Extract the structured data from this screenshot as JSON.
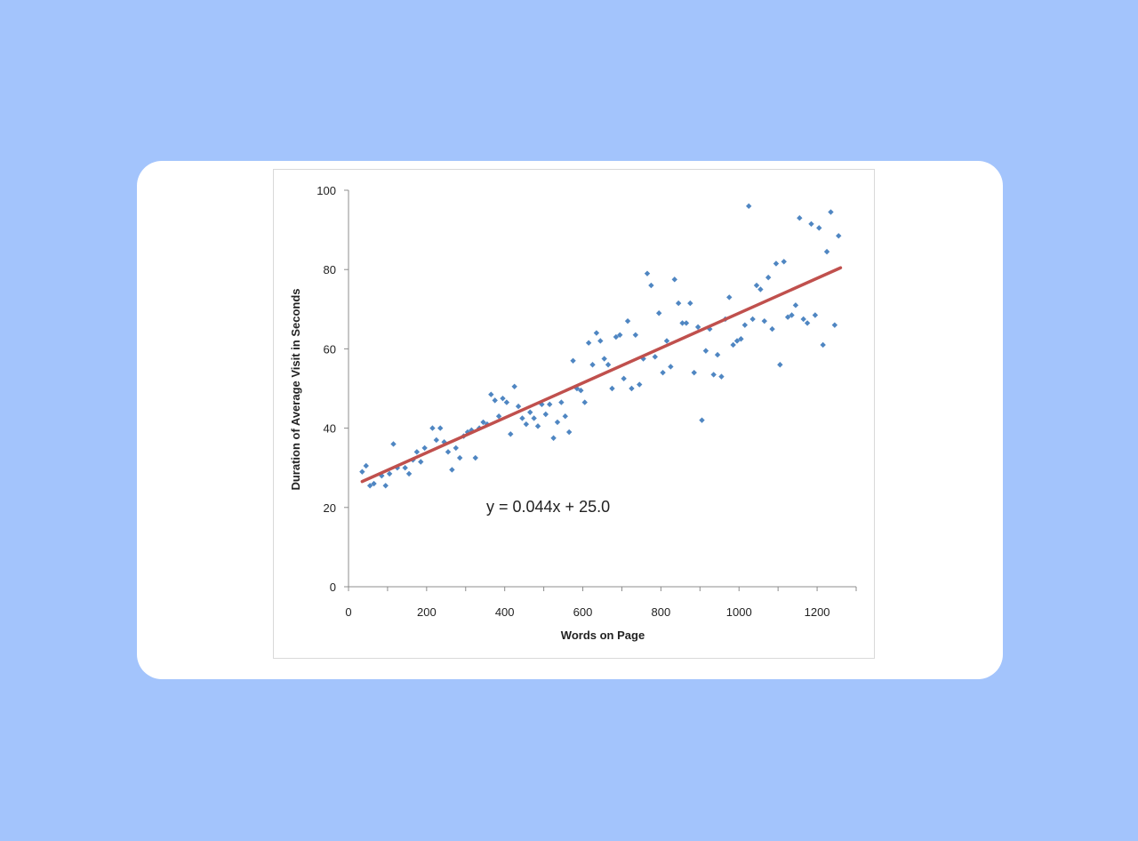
{
  "colors": {
    "background": "#a3c4fc",
    "card": "#ffffff",
    "points": "#4f86c2",
    "trendline": "#c0504d",
    "axis": "#8c8c8c"
  },
  "chart_data": {
    "type": "scatter",
    "title": "",
    "xlabel": "Words on Page",
    "ylabel": "Duration of Average Visit in Seconds",
    "xlim": [
      0,
      1300
    ],
    "ylim": [
      0,
      100
    ],
    "x_ticks": [
      "0",
      "200",
      "400",
      "600",
      "800",
      "1000",
      "1200"
    ],
    "y_ticks": [
      "0",
      "20",
      "40",
      "60",
      "80",
      "100"
    ],
    "grid": false,
    "legend": "none",
    "annotation": "y = 0.044x + 25.0",
    "trendline": {
      "slope": 0.044,
      "intercept": 25.0,
      "x_range": [
        35,
        1260
      ]
    },
    "series": [
      {
        "points": [
          [
            35,
            29
          ],
          [
            45,
            30.5
          ],
          [
            55,
            25.5
          ],
          [
            65,
            26
          ],
          [
            85,
            28
          ],
          [
            95,
            25.5
          ],
          [
            105,
            28.5
          ],
          [
            115,
            36
          ],
          [
            125,
            30
          ],
          [
            145,
            30
          ],
          [
            155,
            28.5
          ],
          [
            165,
            32
          ],
          [
            175,
            34
          ],
          [
            185,
            31.5
          ],
          [
            195,
            35
          ],
          [
            215,
            40
          ],
          [
            225,
            37
          ],
          [
            235,
            40
          ],
          [
            245,
            36.5
          ],
          [
            255,
            34
          ],
          [
            265,
            29.5
          ],
          [
            275,
            35
          ],
          [
            285,
            32.5
          ],
          [
            295,
            38
          ],
          [
            305,
            39
          ],
          [
            315,
            39.5
          ],
          [
            325,
            32.5
          ],
          [
            335,
            40
          ],
          [
            345,
            41.5
          ],
          [
            355,
            41
          ],
          [
            365,
            48.5
          ],
          [
            375,
            47
          ],
          [
            385,
            43
          ],
          [
            395,
            47.5
          ],
          [
            405,
            46.5
          ],
          [
            415,
            38.5
          ],
          [
            425,
            50.5
          ],
          [
            435,
            45.5
          ],
          [
            445,
            42.5
          ],
          [
            455,
            41
          ],
          [
            465,
            44
          ],
          [
            475,
            42.5
          ],
          [
            485,
            40.5
          ],
          [
            495,
            46
          ],
          [
            505,
            43.5
          ],
          [
            515,
            46
          ],
          [
            525,
            37.5
          ],
          [
            535,
            41.5
          ],
          [
            545,
            46.5
          ],
          [
            555,
            43
          ],
          [
            565,
            39
          ],
          [
            575,
            57
          ],
          [
            585,
            50
          ],
          [
            595,
            49.5
          ],
          [
            605,
            46.5
          ],
          [
            615,
            61.5
          ],
          [
            625,
            56
          ],
          [
            635,
            64
          ],
          [
            645,
            62
          ],
          [
            655,
            57.5
          ],
          [
            665,
            56
          ],
          [
            675,
            50
          ],
          [
            685,
            63
          ],
          [
            695,
            63.5
          ],
          [
            705,
            52.5
          ],
          [
            715,
            67
          ],
          [
            725,
            50
          ],
          [
            735,
            63.5
          ],
          [
            745,
            51
          ],
          [
            755,
            57.5
          ],
          [
            765,
            79
          ],
          [
            775,
            76
          ],
          [
            785,
            58
          ],
          [
            795,
            69
          ],
          [
            805,
            54
          ],
          [
            815,
            62
          ],
          [
            825,
            55.5
          ],
          [
            835,
            77.5
          ],
          [
            845,
            71.5
          ],
          [
            855,
            66.5
          ],
          [
            865,
            66.5
          ],
          [
            875,
            71.5
          ],
          [
            885,
            54
          ],
          [
            895,
            65.5
          ],
          [
            905,
            42
          ],
          [
            915,
            59.5
          ],
          [
            925,
            65
          ],
          [
            935,
            53.5
          ],
          [
            945,
            58.5
          ],
          [
            955,
            53
          ],
          [
            965,
            67.5
          ],
          [
            975,
            73
          ],
          [
            985,
            61
          ],
          [
            995,
            62
          ],
          [
            1005,
            62.5
          ],
          [
            1015,
            66
          ],
          [
            1025,
            96
          ],
          [
            1035,
            67.5
          ],
          [
            1045,
            76
          ],
          [
            1055,
            75
          ],
          [
            1065,
            67
          ],
          [
            1075,
            78
          ],
          [
            1085,
            65
          ],
          [
            1095,
            81.5
          ],
          [
            1105,
            56
          ],
          [
            1115,
            82
          ],
          [
            1125,
            68
          ],
          [
            1135,
            68.5
          ],
          [
            1145,
            71
          ],
          [
            1155,
            93
          ],
          [
            1165,
            67.5
          ],
          [
            1175,
            66.5
          ],
          [
            1185,
            91.5
          ],
          [
            1195,
            68.5
          ],
          [
            1205,
            90.5
          ],
          [
            1215,
            61
          ],
          [
            1225,
            84.5
          ],
          [
            1235,
            94.5
          ],
          [
            1245,
            66
          ],
          [
            1255,
            88.5
          ]
        ]
      }
    ]
  }
}
